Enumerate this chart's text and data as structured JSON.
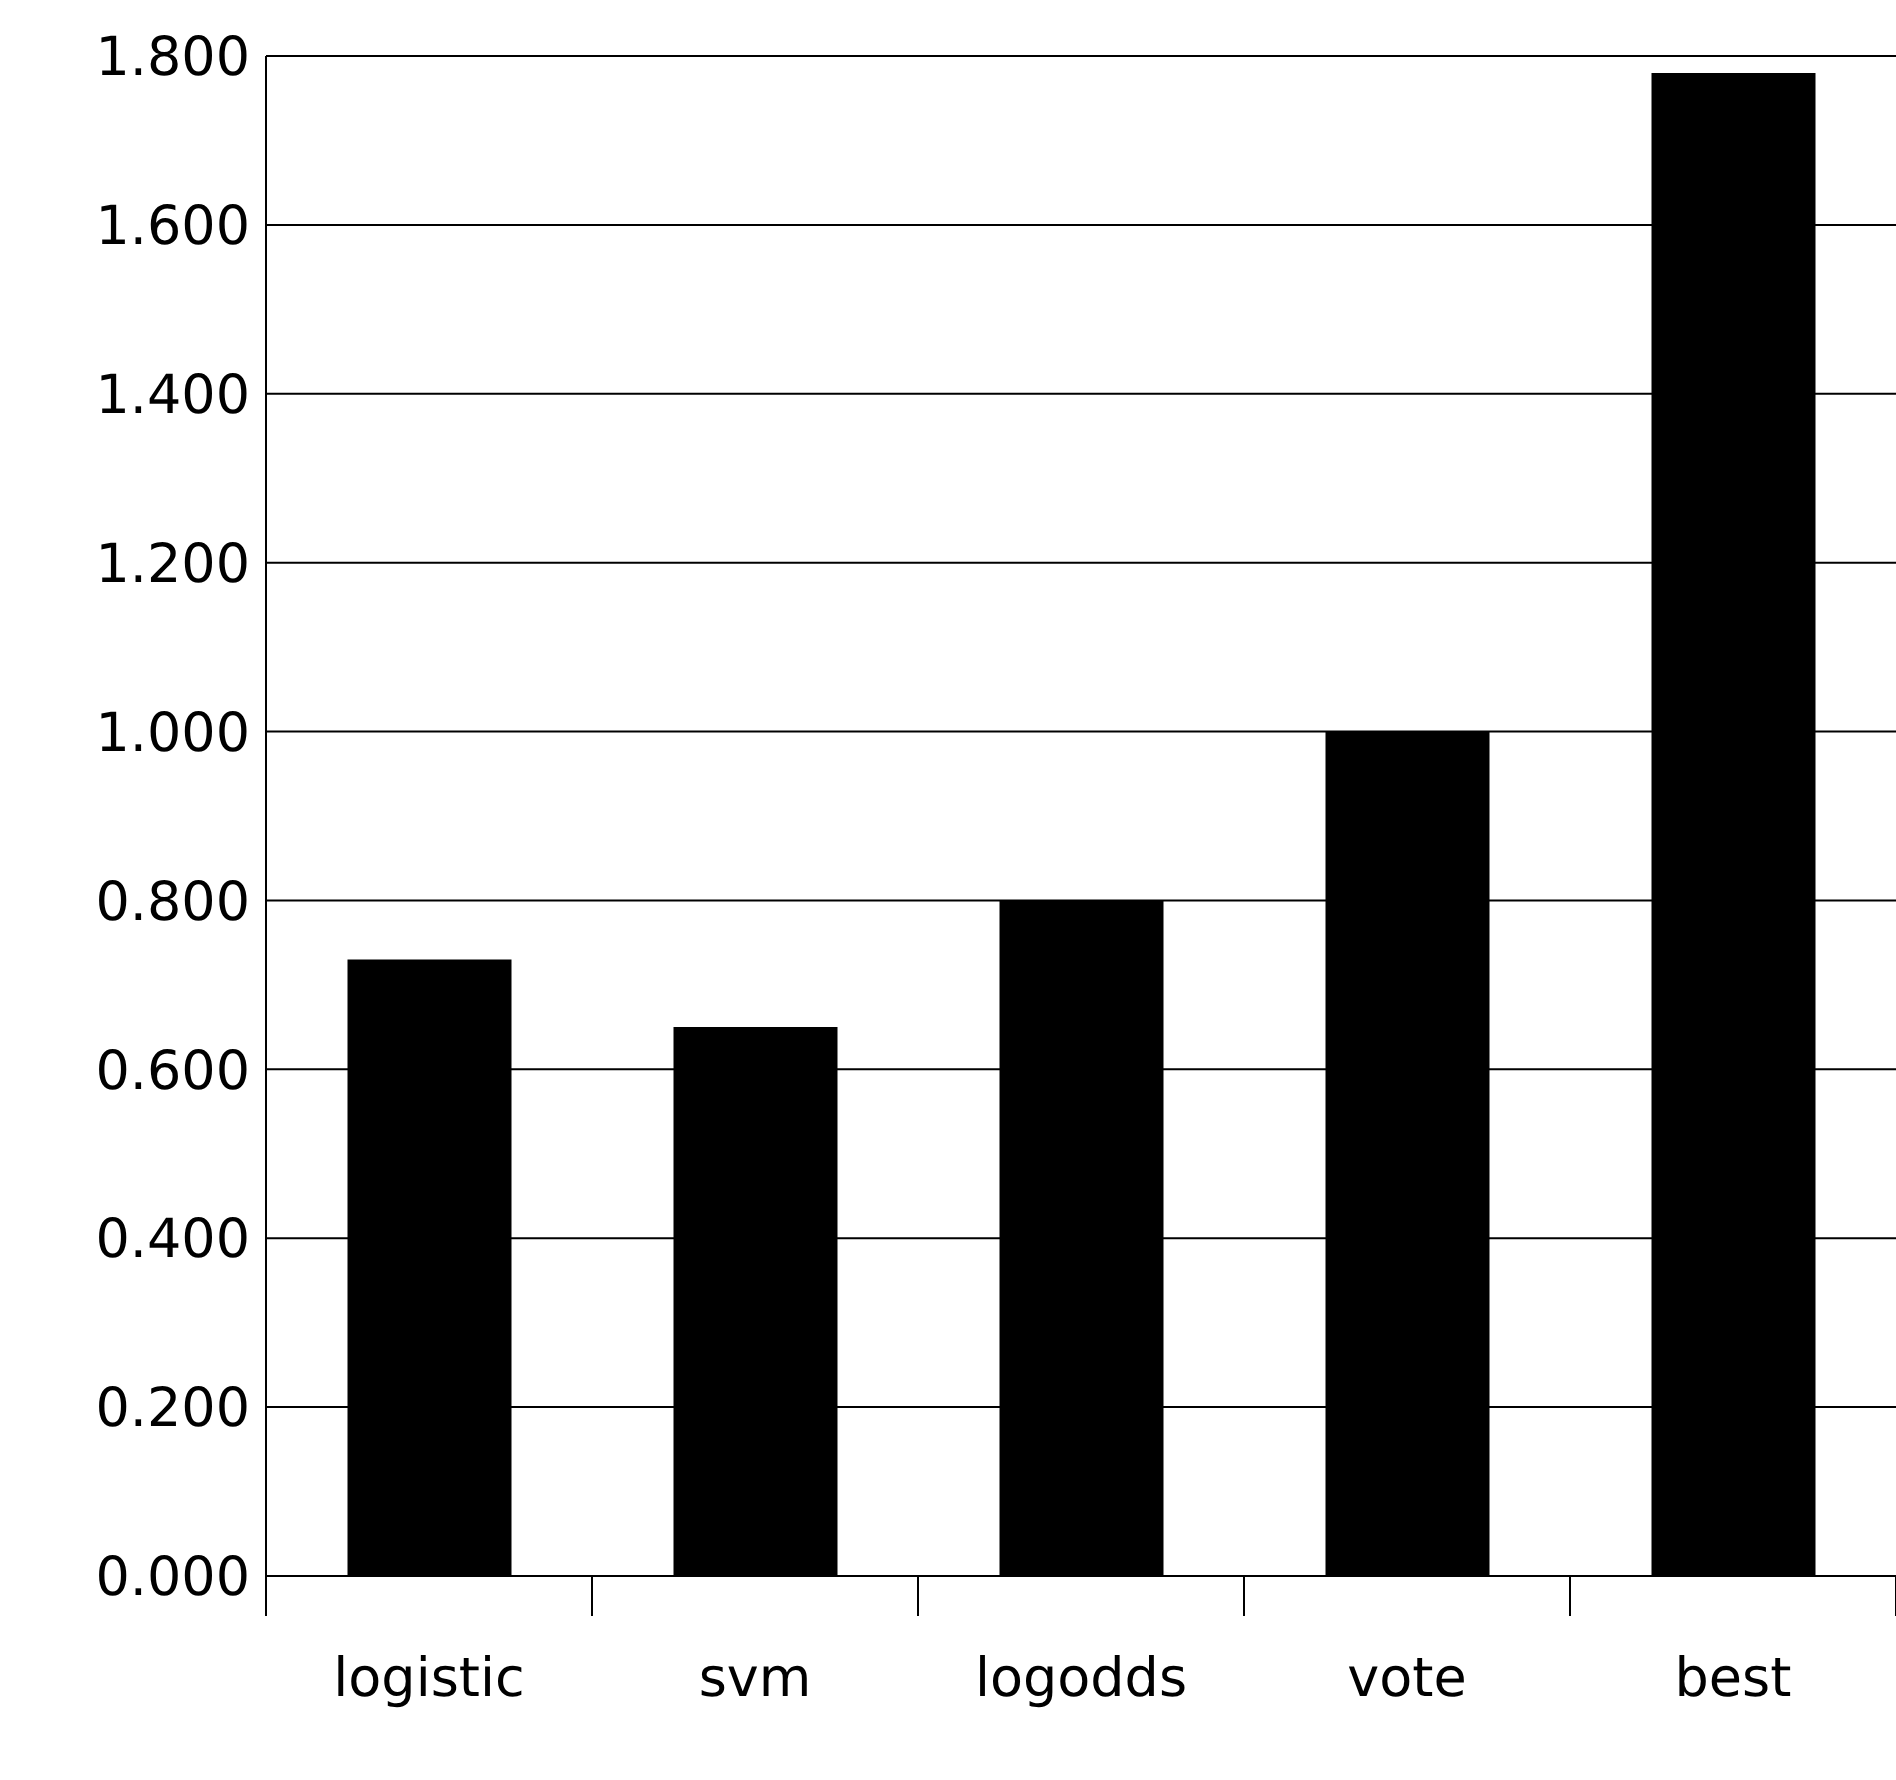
{
  "chart_data": {
    "type": "bar",
    "categories": [
      "logistic",
      "svm",
      "logodds",
      "vote",
      "best"
    ],
    "values": [
      0.73,
      0.65,
      0.8,
      1.0,
      1.78
    ],
    "color": "#000000",
    "ylim": [
      0,
      1.8
    ],
    "yticks": [
      {
        "value": 0,
        "label": "0.000"
      },
      {
        "value": 0.2,
        "label": "0.200"
      },
      {
        "value": 0.4,
        "label": "0.400"
      },
      {
        "value": 0.6,
        "label": "0.600"
      },
      {
        "value": 0.8,
        "label": "0.800"
      },
      {
        "value": 1.0,
        "label": "1.000"
      },
      {
        "value": 1.2,
        "label": "1.200"
      },
      {
        "value": 1.4,
        "label": "1.400"
      },
      {
        "value": 1.6,
        "label": "1.600"
      },
      {
        "value": 1.8,
        "label": "1.800"
      }
    ],
    "grid": "y"
  }
}
